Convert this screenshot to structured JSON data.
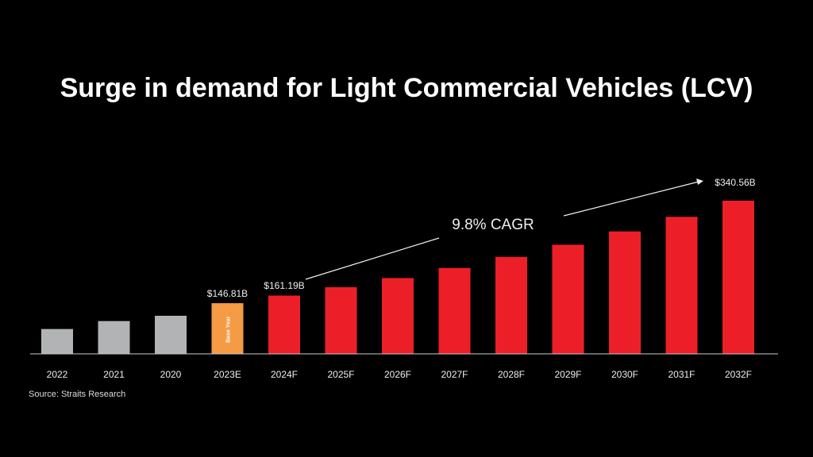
{
  "chart_data": {
    "type": "bar",
    "title": "Surge in demand for Light Commercial Vehicles (LCV)",
    "categories": [
      "2022",
      "2021",
      "2020",
      "2023E",
      "2024F",
      "2025F",
      "2026F",
      "2027F",
      "2028F",
      "2029F",
      "2030F",
      "2031F",
      "2032F"
    ],
    "values": [
      98,
      113,
      123,
      146.81,
      161.19,
      177,
      194.3,
      213.4,
      234.3,
      257.3,
      282.5,
      310.1,
      340.56
    ],
    "colors": [
      "#b1b3b4",
      "#b1b3b4",
      "#b1b3b4",
      "#f59a45",
      "#ec1f28",
      "#ec1f28",
      "#ec1f28",
      "#ec1f28",
      "#ec1f28",
      "#ec1f28",
      "#ec1f28",
      "#ec1f28",
      "#ec1f28"
    ],
    "data_labels": {
      "3": "$146.81B",
      "4": "$161.19B",
      "12": "$340.56B"
    },
    "bar_inner_label": {
      "3": "Base Year"
    },
    "annotation": "9.8% CAGR",
    "xlabel": "",
    "ylabel": "",
    "ylim": [
      51,
      345
    ],
    "grid": false,
    "source": "Source: Straits Research"
  }
}
